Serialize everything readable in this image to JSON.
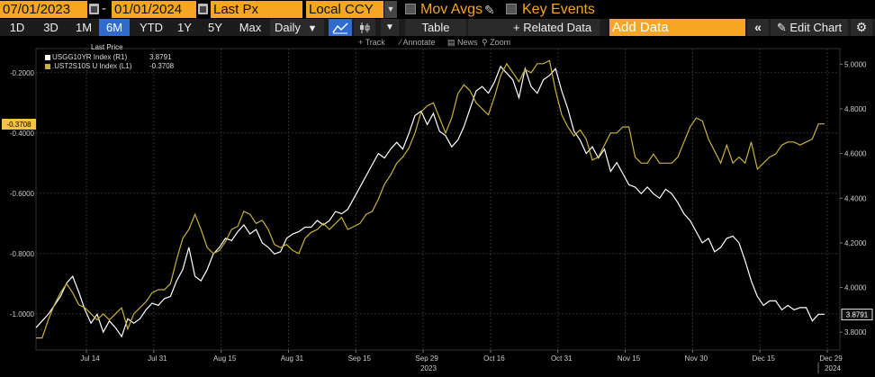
{
  "query_bar": {
    "start_date": "07/01/2023",
    "end_date": "01/01/2024",
    "field": "Last Px",
    "currency": "Local CCY",
    "mov_avgs_label": "Mov Avgs",
    "key_events_label": "Key Events"
  },
  "toolbar": {
    "periods": [
      "1D",
      "3D",
      "1M",
      "6M",
      "YTD",
      "1Y",
      "5Y",
      "Max"
    ],
    "active_period": "6M",
    "frequency": "Daily",
    "table_label": "Table",
    "related_data_label": "+ Related Data",
    "add_data_placeholder": "Add Data",
    "edit_chart_label": "Edit Chart"
  },
  "chart_tools": {
    "track": "Track",
    "annotate": "Annotate",
    "news": "News",
    "zoom": "Zoom"
  },
  "legend": {
    "title": "Last Price",
    "series": [
      {
        "name": "USGG10YR Index (R1)",
        "value": "3.8791",
        "color": "#ffffff"
      },
      {
        "name": ".UST2S10S U Index (L1)",
        "value": "-0.3708",
        "color": "#c8b23a"
      }
    ]
  },
  "colors": {
    "accent": "#f5a623",
    "active_tab": "#2f6ccb",
    "series_10y": "#ffffff",
    "series_2s10s": "#c8b23a"
  },
  "chart_data": {
    "type": "line",
    "left_axis": {
      "ticks": [
        "-0.2000",
        "-0.4000",
        "-0.6000",
        "-0.8000",
        "-1.0000"
      ],
      "range": [
        -1.12,
        -0.12
      ]
    },
    "right_axis": {
      "ticks": [
        "5.0000",
        "4.8000",
        "4.6000",
        "4.4000",
        "4.2000",
        "4.0000",
        "3.8000"
      ],
      "range": [
        3.72,
        5.07
      ]
    },
    "x_ticks": [
      "Jul 14",
      "Jul 31",
      "Aug 15",
      "Aug 31",
      "Sep 15",
      "Sep 29",
      "Oct 16",
      "Oct 31",
      "Nov 15",
      "Nov 30",
      "Dec 15",
      "Dec 29"
    ],
    "x_year_labels": [
      "2023",
      "2024"
    ],
    "grid": true,
    "left_last_label": "-0.3708",
    "right_last_label": "3.8791",
    "series": [
      {
        "name": "USGG10YR Index (R1)",
        "axis": "right",
        "color": "#ffffff",
        "values": [
          3.82,
          3.85,
          3.88,
          3.92,
          3.96,
          4.02,
          4.05,
          3.98,
          3.9,
          3.84,
          3.88,
          3.8,
          3.85,
          3.82,
          3.78,
          3.86,
          3.84,
          3.86,
          3.9,
          3.93,
          3.92,
          3.95,
          3.96,
          4.03,
          4.08,
          4.18,
          4.05,
          4.03,
          4.08,
          4.15,
          4.18,
          4.22,
          4.21,
          4.25,
          4.28,
          4.24,
          4.26,
          4.2,
          4.18,
          4.15,
          4.16,
          4.22,
          4.24,
          4.25,
          4.27,
          4.27,
          4.3,
          4.28,
          4.3,
          4.34,
          4.33,
          4.35,
          4.4,
          4.45,
          4.5,
          4.55,
          4.6,
          4.58,
          4.62,
          4.65,
          4.62,
          4.69,
          4.77,
          4.79,
          4.73,
          4.78,
          4.7,
          4.68,
          4.63,
          4.66,
          4.72,
          4.8,
          4.88,
          4.9,
          4.87,
          4.92,
          4.99,
          4.96,
          4.93,
          4.85,
          4.98,
          4.9,
          4.87,
          4.93,
          4.95,
          4.98,
          4.88,
          4.8,
          4.7,
          4.66,
          4.6,
          4.63,
          4.58,
          4.62,
          4.52,
          4.56,
          4.51,
          4.46,
          4.45,
          4.42,
          4.45,
          4.42,
          4.4,
          4.44,
          4.42,
          4.38,
          4.33,
          4.3,
          4.25,
          4.2,
          4.22,
          4.16,
          4.18,
          4.22,
          4.23,
          4.2,
          4.12,
          4.03,
          3.96,
          3.92,
          3.94,
          3.94,
          3.9,
          3.92,
          3.9,
          3.91,
          3.91,
          3.85,
          3.88,
          3.88
        ]
      },
      {
        "name": ".UST2S10S U Index (L1)",
        "axis": "left",
        "color": "#c8b23a",
        "values": [
          -1.08,
          -1.08,
          -1.02,
          -0.97,
          -0.93,
          -0.9,
          -0.93,
          -0.97,
          -0.98,
          -1.0,
          -1.02,
          -1.0,
          -1.02,
          -1.0,
          -0.98,
          -1.05,
          -1.0,
          -0.98,
          -0.96,
          -0.93,
          -0.92,
          -0.92,
          -0.9,
          -0.82,
          -0.75,
          -0.72,
          -0.67,
          -0.72,
          -0.78,
          -0.8,
          -0.79,
          -0.76,
          -0.72,
          -0.71,
          -0.66,
          -0.67,
          -0.7,
          -0.69,
          -0.72,
          -0.77,
          -0.78,
          -0.77,
          -0.79,
          -0.8,
          -0.75,
          -0.73,
          -0.72,
          -0.7,
          -0.72,
          -0.7,
          -0.68,
          -0.72,
          -0.71,
          -0.7,
          -0.67,
          -0.66,
          -0.62,
          -0.57,
          -0.54,
          -0.5,
          -0.48,
          -0.45,
          -0.4,
          -0.33,
          -0.31,
          -0.3,
          -0.35,
          -0.4,
          -0.35,
          -0.27,
          -0.24,
          -0.26,
          -0.3,
          -0.32,
          -0.34,
          -0.28,
          -0.21,
          -0.17,
          -0.2,
          -0.23,
          -0.19,
          -0.2,
          -0.17,
          -0.17,
          -0.16,
          -0.26,
          -0.34,
          -0.38,
          -0.41,
          -0.39,
          -0.42,
          -0.49,
          -0.48,
          -0.44,
          -0.4,
          -0.4,
          -0.38,
          -0.38,
          -0.48,
          -0.5,
          -0.5,
          -0.47,
          -0.5,
          -0.5,
          -0.5,
          -0.48,
          -0.43,
          -0.38,
          -0.35,
          -0.36,
          -0.42,
          -0.46,
          -0.5,
          -0.44,
          -0.5,
          -0.48,
          -0.5,
          -0.43,
          -0.52,
          -0.5,
          -0.48,
          -0.47,
          -0.44,
          -0.43,
          -0.43,
          -0.44,
          -0.43,
          -0.42,
          -0.37,
          -0.37
        ]
      }
    ]
  }
}
